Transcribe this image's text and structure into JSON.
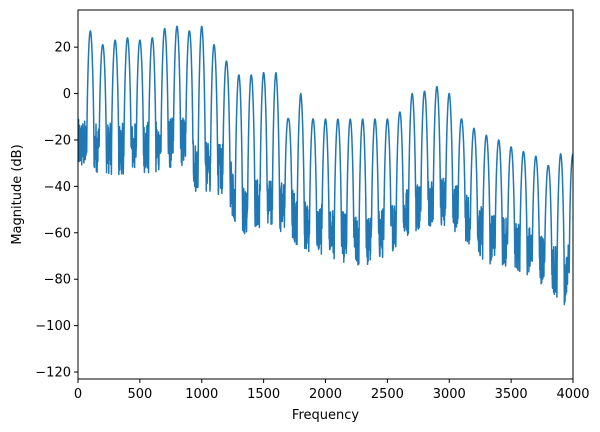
{
  "chart_data": {
    "type": "line",
    "title": "",
    "xlabel": "Frequency",
    "ylabel": "Magnitude (dB)",
    "xlim": [
      0,
      4000
    ],
    "ylim": [
      -123,
      36
    ],
    "xticks": [
      0,
      500,
      1000,
      1500,
      2000,
      2500,
      3000,
      3500,
      4000
    ],
    "xtick_labels": [
      "0",
      "500",
      "1000",
      "1500",
      "2000",
      "2500",
      "3000",
      "3500",
      "4000"
    ],
    "yticks": [
      -120,
      -100,
      -80,
      -60,
      -40,
      -20,
      0,
      20
    ],
    "ytick_labels": [
      "−120",
      "−100",
      "−80",
      "−60",
      "−40",
      "−20",
      "0",
      "20"
    ],
    "grid": false,
    "legend": "none",
    "line_color": "#1f77b4",
    "harmonic_spacing": 100,
    "series": [
      {
        "harmonic_frequencies": [
          100,
          200,
          300,
          400,
          500,
          600,
          700,
          800,
          900,
          1000,
          1100,
          1200,
          1300,
          1400,
          1500,
          1600,
          1700,
          1800,
          1900,
          2000,
          2100,
          2200,
          2300,
          2400,
          2500,
          2600,
          2700,
          2800,
          2900,
          3000,
          3100,
          3200,
          3300,
          3400,
          3500,
          3600,
          3700,
          3800,
          3900
        ],
        "harmonic_peaks_db": [
          27,
          21,
          23,
          24,
          23,
          24,
          28,
          29,
          27,
          29,
          21,
          14,
          8,
          8,
          9,
          9,
          -11,
          0,
          -11,
          -11,
          -11,
          -11,
          -11,
          -11,
          -11,
          -8,
          0,
          1,
          3,
          0,
          -11,
          -15,
          -18,
          -20,
          -23,
          -25,
          -27,
          -31,
          -26
        ],
        "floor_envelope_db": [
          [
            0,
            -33
          ],
          [
            300,
            -35
          ],
          [
            600,
            -34
          ],
          [
            900,
            -31
          ],
          [
            950,
            -43
          ],
          [
            1050,
            -43
          ],
          [
            1200,
            -44
          ],
          [
            1300,
            -63
          ],
          [
            1400,
            -58
          ],
          [
            1700,
            -60
          ],
          [
            1800,
            -68
          ],
          [
            2000,
            -70
          ],
          [
            2300,
            -76
          ],
          [
            2500,
            -70
          ],
          [
            2700,
            -60
          ],
          [
            2900,
            -56
          ],
          [
            3100,
            -62
          ],
          [
            3300,
            -73
          ],
          [
            3600,
            -77
          ],
          [
            3800,
            -84
          ],
          [
            3950,
            -92
          ],
          [
            4000,
            -60
          ]
        ]
      }
    ]
  }
}
